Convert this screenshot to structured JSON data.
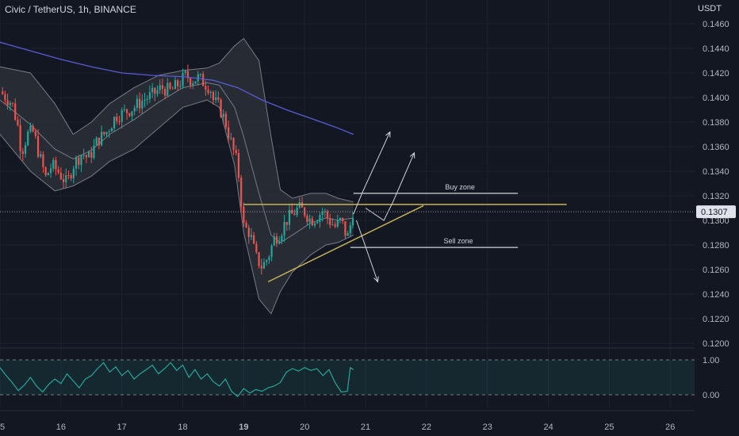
{
  "header": {
    "symbol": "Civic / TetherUS, 1h, BINANCE",
    "currency": "USDT"
  },
  "colors": {
    "background": "#131722",
    "up": "#26a69a",
    "down": "#ef5350",
    "band_fill": "#2a2d36",
    "band_line": "#787b86",
    "ma": "#5b5bd6",
    "pattern": "#c9b458",
    "zone": "#d1d4dc",
    "rsi": "#26a69a"
  },
  "chart_data": [
    {
      "type": "candlestick",
      "title": "Civic / TetherUS, 1h, BINANCE",
      "ylabel": "USDT",
      "ylim": [
        0.12,
        0.1466
      ],
      "y_ticks": [
        "0.1460",
        "0.1440",
        "0.1420",
        "0.1400",
        "0.1380",
        "0.1360",
        "0.1340",
        "0.1320",
        "0.1300",
        "0.1280",
        "0.1260",
        "0.1240",
        "0.1220",
        "0.1200"
      ],
      "y_tick_values": [
        0.146,
        0.144,
        0.142,
        0.14,
        0.138,
        0.136,
        0.134,
        0.132,
        0.13,
        0.128,
        0.126,
        0.124,
        0.122,
        0.12
      ],
      "x_ticks": [
        "15",
        "16",
        "17",
        "18",
        "19",
        "20",
        "21",
        "22",
        "23",
        "24",
        "25",
        "26"
      ],
      "x_tick_days": [
        15,
        16,
        17,
        18,
        19,
        20,
        21,
        22,
        23,
        24,
        25,
        26
      ],
      "x_range_days": [
        15.0,
        26.4
      ],
      "last_price": "0.1307",
      "last_price_value": 0.1307,
      "close_path": [
        [
          15.0,
          0.1405
        ],
        [
          15.2,
          0.1395
        ],
        [
          15.3,
          0.1375
        ],
        [
          15.35,
          0.1355
        ],
        [
          15.45,
          0.137
        ],
        [
          15.55,
          0.1372
        ],
        [
          15.65,
          0.1352
        ],
        [
          15.75,
          0.1335
        ],
        [
          15.85,
          0.1345
        ],
        [
          15.95,
          0.134
        ],
        [
          16.1,
          0.133
        ],
        [
          16.2,
          0.1345
        ],
        [
          16.35,
          0.1355
        ],
        [
          16.45,
          0.135
        ],
        [
          16.6,
          0.1365
        ],
        [
          16.75,
          0.1372
        ],
        [
          16.9,
          0.1385
        ],
        [
          17.05,
          0.1388
        ],
        [
          17.2,
          0.1392
        ],
        [
          17.35,
          0.1398
        ],
        [
          17.5,
          0.1402
        ],
        [
          17.65,
          0.1408
        ],
        [
          17.8,
          0.1405
        ],
        [
          17.95,
          0.1412
        ],
        [
          18.05,
          0.1418
        ],
        [
          18.15,
          0.1414
        ],
        [
          18.25,
          0.1416
        ],
        [
          18.35,
          0.1412
        ],
        [
          18.45,
          0.1408
        ],
        [
          18.5,
          0.1398
        ],
        [
          18.6,
          0.1392
        ],
        [
          18.7,
          0.138
        ],
        [
          18.8,
          0.1362
        ],
        [
          18.9,
          0.1345
        ],
        [
          18.95,
          0.132
        ],
        [
          19.0,
          0.1295
        ],
        [
          19.1,
          0.129
        ],
        [
          19.2,
          0.127
        ],
        [
          19.3,
          0.1262
        ],
        [
          19.4,
          0.127
        ],
        [
          19.5,
          0.1285
        ],
        [
          19.6,
          0.129
        ],
        [
          19.7,
          0.13
        ],
        [
          19.8,
          0.1305
        ],
        [
          19.9,
          0.131
        ],
        [
          20.0,
          0.1307
        ],
        [
          20.1,
          0.13
        ],
        [
          20.2,
          0.1303
        ],
        [
          20.3,
          0.1308
        ],
        [
          20.4,
          0.13
        ],
        [
          20.5,
          0.1295
        ],
        [
          20.6,
          0.13
        ],
        [
          20.7,
          0.1285
        ],
        [
          20.75,
          0.1296
        ],
        [
          20.8,
          0.131
        ]
      ],
      "bollinger": {
        "upper": [
          [
            15.0,
            0.1425
          ],
          [
            15.5,
            0.142
          ],
          [
            15.9,
            0.1395
          ],
          [
            16.2,
            0.137
          ],
          [
            16.5,
            0.138
          ],
          [
            16.8,
            0.1395
          ],
          [
            17.2,
            0.1408
          ],
          [
            17.6,
            0.1418
          ],
          [
            18.0,
            0.1422
          ],
          [
            18.4,
            0.1424
          ],
          [
            18.6,
            0.1428
          ],
          [
            18.85,
            0.1442
          ],
          [
            19.0,
            0.1448
          ],
          [
            19.25,
            0.143
          ],
          [
            19.45,
            0.1368
          ],
          [
            19.6,
            0.1325
          ],
          [
            19.8,
            0.1318
          ],
          [
            20.1,
            0.1322
          ],
          [
            20.35,
            0.1322
          ],
          [
            20.55,
            0.1318
          ],
          [
            20.8,
            0.1315
          ]
        ],
        "middle": [
          [
            15.0,
            0.1398
          ],
          [
            15.5,
            0.1378
          ],
          [
            15.9,
            0.1358
          ],
          [
            16.2,
            0.135
          ],
          [
            16.5,
            0.1357
          ],
          [
            16.8,
            0.137
          ],
          [
            17.2,
            0.1382
          ],
          [
            17.6,
            0.1396
          ],
          [
            18.0,
            0.1408
          ],
          [
            18.4,
            0.1412
          ],
          [
            18.6,
            0.141
          ],
          [
            18.85,
            0.1392
          ],
          [
            19.0,
            0.1368
          ],
          [
            19.25,
            0.1322
          ],
          [
            19.45,
            0.1288
          ],
          [
            19.6,
            0.1282
          ],
          [
            19.8,
            0.1288
          ],
          [
            20.1,
            0.1298
          ],
          [
            20.35,
            0.1302
          ],
          [
            20.55,
            0.13
          ],
          [
            20.8,
            0.1302
          ]
        ],
        "lower": [
          [
            15.0,
            0.137
          ],
          [
            15.5,
            0.134
          ],
          [
            15.9,
            0.1324
          ],
          [
            16.2,
            0.1328
          ],
          [
            16.5,
            0.1336
          ],
          [
            16.8,
            0.1348
          ],
          [
            17.2,
            0.1358
          ],
          [
            17.6,
            0.1375
          ],
          [
            18.0,
            0.1392
          ],
          [
            18.4,
            0.1398
          ],
          [
            18.6,
            0.1392
          ],
          [
            18.85,
            0.1345
          ],
          [
            19.0,
            0.129
          ],
          [
            19.25,
            0.1236
          ],
          [
            19.45,
            0.1224
          ],
          [
            19.6,
            0.1242
          ],
          [
            19.8,
            0.1258
          ],
          [
            20.1,
            0.1272
          ],
          [
            20.35,
            0.128
          ],
          [
            20.55,
            0.1282
          ],
          [
            20.8,
            0.1288
          ]
        ]
      },
      "moving_average": [
        [
          15.0,
          0.1445
        ],
        [
          15.5,
          0.1438
        ],
        [
          16.0,
          0.1431
        ],
        [
          16.5,
          0.1425
        ],
        [
          17.0,
          0.142
        ],
        [
          17.5,
          0.1418
        ],
        [
          18.0,
          0.1417
        ],
        [
          18.5,
          0.1414
        ],
        [
          18.9,
          0.1408
        ],
        [
          19.3,
          0.1398
        ],
        [
          19.7,
          0.139
        ],
        [
          20.1,
          0.1383
        ],
        [
          20.5,
          0.1376
        ],
        [
          20.8,
          0.137
        ]
      ],
      "annotations": [
        {
          "label": "Buy zone",
          "x": [
            20.8,
            23.5
          ],
          "y": 0.1322
        },
        {
          "label": "Sell zone",
          "x": [
            20.75,
            23.5
          ],
          "y": 0.1278
        },
        {
          "label": "",
          "kind": "resistance",
          "x": [
            19.0,
            24.3
          ],
          "y": 0.1313
        },
        {
          "label": "",
          "kind": "support-trendline",
          "points": [
            [
              19.4,
              0.125
            ],
            [
              21.95,
              0.1312
            ]
          ]
        }
      ],
      "projection_arrows": [
        [
          [
            20.8,
            0.1305
          ],
          [
            20.95,
            0.1323
          ],
          [
            21.4,
            0.1372
          ]
        ],
        [
          [
            21.0,
            0.131
          ],
          [
            21.3,
            0.13
          ],
          [
            21.45,
            0.1315
          ],
          [
            21.8,
            0.1355
          ]
        ],
        [
          [
            20.85,
            0.13
          ],
          [
            21.2,
            0.125
          ]
        ]
      ]
    },
    {
      "type": "line",
      "title": "",
      "ylim": [
        -0.1,
        1.1
      ],
      "y_ticks": [
        "1.00",
        "0.00"
      ],
      "y_tick_values": [
        1.0,
        0.0
      ],
      "band": [
        0.0,
        1.0
      ],
      "series": [
        {
          "values": [
            [
              15.0,
              0.78
            ],
            [
              15.1,
              0.55
            ],
            [
              15.2,
              0.35
            ],
            [
              15.3,
              0.12
            ],
            [
              15.4,
              0.28
            ],
            [
              15.5,
              0.5
            ],
            [
              15.6,
              0.25
            ],
            [
              15.7,
              0.08
            ],
            [
              15.8,
              0.3
            ],
            [
              15.9,
              0.45
            ],
            [
              16.0,
              0.32
            ],
            [
              16.1,
              0.6
            ],
            [
              16.2,
              0.4
            ],
            [
              16.3,
              0.2
            ],
            [
              16.4,
              0.45
            ],
            [
              16.5,
              0.55
            ],
            [
              16.6,
              0.75
            ],
            [
              16.7,
              0.92
            ],
            [
              16.8,
              0.65
            ],
            [
              16.9,
              0.8
            ],
            [
              17.0,
              0.55
            ],
            [
              17.1,
              0.7
            ],
            [
              17.2,
              0.45
            ],
            [
              17.3,
              0.6
            ],
            [
              17.4,
              0.72
            ],
            [
              17.5,
              0.85
            ],
            [
              17.6,
              0.6
            ],
            [
              17.7,
              0.75
            ],
            [
              17.8,
              0.92
            ],
            [
              17.9,
              0.7
            ],
            [
              18.0,
              0.85
            ],
            [
              18.1,
              0.5
            ],
            [
              18.2,
              0.72
            ],
            [
              18.3,
              0.45
            ],
            [
              18.4,
              0.6
            ],
            [
              18.5,
              0.38
            ],
            [
              18.6,
              0.25
            ],
            [
              18.7,
              0.45
            ],
            [
              18.8,
              0.1
            ],
            [
              18.9,
              -0.05
            ],
            [
              19.0,
              0.18
            ],
            [
              19.1,
              0.05
            ],
            [
              19.2,
              0.15
            ],
            [
              19.3,
              0.1
            ],
            [
              19.4,
              0.2
            ],
            [
              19.5,
              0.25
            ],
            [
              19.6,
              0.35
            ],
            [
              19.7,
              0.65
            ],
            [
              19.8,
              0.75
            ],
            [
              19.9,
              0.68
            ],
            [
              20.0,
              0.78
            ],
            [
              20.1,
              0.7
            ],
            [
              20.2,
              0.75
            ],
            [
              20.3,
              0.55
            ],
            [
              20.4,
              0.72
            ],
            [
              20.5,
              0.35
            ],
            [
              20.6,
              0.08
            ],
            [
              20.7,
              0.1
            ],
            [
              20.75,
              0.78
            ],
            [
              20.8,
              0.72
            ]
          ]
        }
      ]
    }
  ]
}
